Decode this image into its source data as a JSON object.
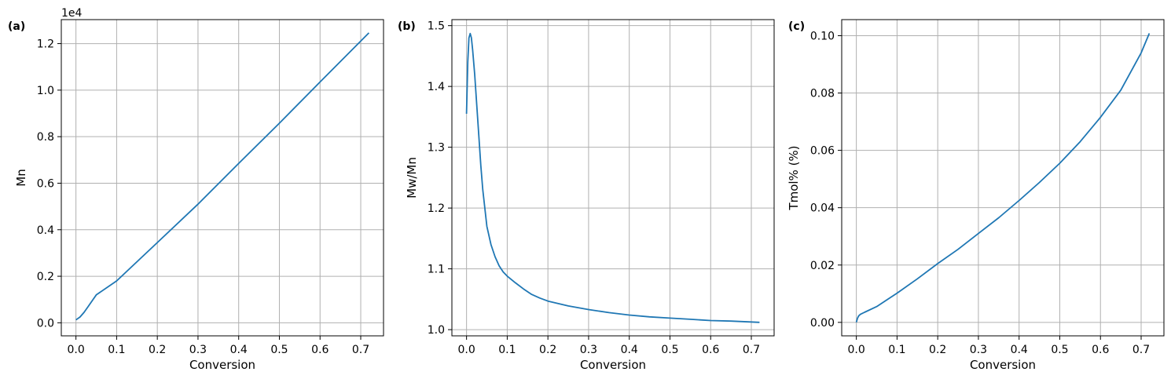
{
  "colors": {
    "line": "#1f77b4",
    "grid": "#b0b0b0",
    "axis": "#000000"
  },
  "chart_data": [
    {
      "type": "line",
      "panel_label": "(a)",
      "xlabel": "Conversion",
      "ylabel": "Mn",
      "offset_text": "1e4",
      "xlim": [
        -0.036,
        0.756
      ],
      "ylim": [
        -0.0561,
        1.3031
      ],
      "xticks": [
        0.0,
        0.1,
        0.2,
        0.3,
        0.4,
        0.5,
        0.6,
        0.7
      ],
      "xtick_labels": [
        "0.0",
        "0.1",
        "0.2",
        "0.3",
        "0.4",
        "0.5",
        "0.6",
        "0.7"
      ],
      "yticks": [
        0.0,
        0.2,
        0.4,
        0.6,
        0.8,
        1.0,
        1.2
      ],
      "ytick_labels": [
        "0.0",
        "0.2",
        "0.4",
        "0.6",
        "0.8",
        "1.0",
        "1.2"
      ],
      "grid": true,
      "series": [
        {
          "x": [
            0.0,
            0.01,
            0.02,
            0.03,
            0.05,
            0.1,
            0.2,
            0.3,
            0.4,
            0.5,
            0.6,
            0.72
          ],
          "y": [
            0.0125,
            0.025,
            0.045,
            0.07,
            0.12,
            0.18,
            0.345,
            0.51,
            0.685,
            0.858,
            1.035,
            1.246
          ]
        }
      ]
    },
    {
      "type": "line",
      "panel_label": "(b)",
      "xlabel": "Conversion",
      "ylabel": "Mw/Mn",
      "xlim": [
        -0.036,
        0.756
      ],
      "ylim": [
        0.9898,
        1.5099
      ],
      "xticks": [
        0.0,
        0.1,
        0.2,
        0.3,
        0.4,
        0.5,
        0.6,
        0.7
      ],
      "xtick_labels": [
        "0.0",
        "0.1",
        "0.2",
        "0.3",
        "0.4",
        "0.5",
        "0.6",
        "0.7"
      ],
      "yticks": [
        1.0,
        1.1,
        1.2,
        1.3,
        1.4,
        1.5
      ],
      "ytick_labels": [
        "1.0",
        "1.1",
        "1.2",
        "1.3",
        "1.4",
        "1.5"
      ],
      "grid": true,
      "series": [
        {
          "x": [
            0.0,
            0.003,
            0.006,
            0.009,
            0.012,
            0.015,
            0.02,
            0.025,
            0.03,
            0.035,
            0.04,
            0.05,
            0.06,
            0.07,
            0.08,
            0.09,
            0.1,
            0.12,
            0.14,
            0.16,
            0.18,
            0.2,
            0.25,
            0.3,
            0.35,
            0.4,
            0.45,
            0.5,
            0.55,
            0.6,
            0.65,
            0.72
          ],
          "y": [
            1.355,
            1.44,
            1.48,
            1.487,
            1.48,
            1.46,
            1.42,
            1.37,
            1.32,
            1.27,
            1.23,
            1.17,
            1.14,
            1.12,
            1.105,
            1.095,
            1.088,
            1.077,
            1.067,
            1.058,
            1.052,
            1.047,
            1.039,
            1.033,
            1.028,
            1.024,
            1.021,
            1.019,
            1.017,
            1.015,
            1.014,
            1.012
          ]
        }
      ]
    },
    {
      "type": "line",
      "panel_label": "(c)",
      "xlabel": "Conversion",
      "ylabel": "Tmol% (%)",
      "xlim": [
        -0.036,
        0.756
      ],
      "ylim": [
        -0.0047,
        0.1056
      ],
      "xticks": [
        0.0,
        0.1,
        0.2,
        0.3,
        0.4,
        0.5,
        0.6,
        0.7
      ],
      "xtick_labels": [
        "0.0",
        "0.1",
        "0.2",
        "0.3",
        "0.4",
        "0.5",
        "0.6",
        "0.7"
      ],
      "yticks": [
        0.0,
        0.02,
        0.04,
        0.06,
        0.08,
        0.1
      ],
      "ytick_labels": [
        "0.00",
        "0.02",
        "0.04",
        "0.06",
        "0.08",
        "0.10"
      ],
      "grid": true,
      "series": [
        {
          "x": [
            0.0,
            0.003,
            0.006,
            0.01,
            0.02,
            0.05,
            0.1,
            0.15,
            0.2,
            0.25,
            0.3,
            0.35,
            0.4,
            0.45,
            0.5,
            0.55,
            0.6,
            0.65,
            0.7,
            0.72
          ],
          "y": [
            0.0,
            0.0015,
            0.0023,
            0.0028,
            0.0035,
            0.0055,
            0.0102,
            0.0152,
            0.0205,
            0.0255,
            0.031,
            0.0365,
            0.0425,
            0.0488,
            0.0555,
            0.063,
            0.0715,
            0.081,
            0.094,
            0.1008
          ]
        }
      ]
    }
  ]
}
